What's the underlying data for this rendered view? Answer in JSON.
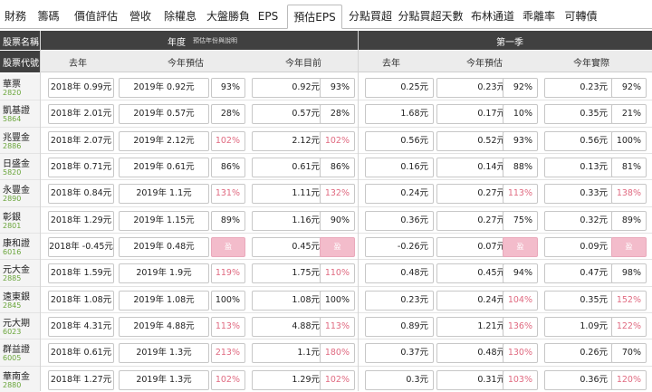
{
  "tabs": [
    {
      "label": "財務",
      "active": false
    },
    {
      "label": "籌碼",
      "active": false
    },
    {
      "label": "價值評估",
      "active": false
    },
    {
      "label": "營收",
      "active": false
    },
    {
      "label": "除權息",
      "active": false
    },
    {
      "label": "大盤勝負",
      "active": false
    },
    {
      "label": "EPS",
      "active": false
    },
    {
      "label": "預估EPS",
      "active": true
    },
    {
      "label": "分點買超",
      "active": false
    },
    {
      "label": "分點買超天數",
      "active": false
    },
    {
      "label": "布林通道",
      "active": false
    },
    {
      "label": "乖離率",
      "active": false
    },
    {
      "label": "可轉債",
      "active": false
    }
  ],
  "header": {
    "stock_name": "股票名稱",
    "stock_code": "股票代號",
    "annual_title": "年度",
    "annual_note": "預估年份與說明",
    "quarter_title": "第一季",
    "cols": {
      "last_year": "去年",
      "forecast": "今年預估",
      "current": "今年目前",
      "actual": "今年實際"
    }
  },
  "colors": {
    "header_dark": "#404040",
    "red_text": "#e06a80",
    "pink_badge": "#f3bccb",
    "code_green": "#6aa53b"
  },
  "rows": [
    {
      "name": "華票",
      "code": "2820",
      "y_last": "2018年 0.99元",
      "y_fc": "2019年 0.92元",
      "y_fc_pct": "93%",
      "y_cur": "0.92元",
      "y_cur_pct": "93%",
      "q_last": "0.25元",
      "q_fc": "0.23元",
      "q_fc_pct": "92%",
      "q_act": "0.23元",
      "q_act_pct": "92%"
    },
    {
      "name": "凱基證",
      "code": "5864",
      "y_last": "2018年 2.01元",
      "y_fc": "2019年 0.57元",
      "y_fc_pct": "28%",
      "y_cur": "0.57元",
      "y_cur_pct": "28%",
      "q_last": "1.68元",
      "q_fc": "0.17元",
      "q_fc_pct": "10%",
      "q_act": "0.35元",
      "q_act_pct": "21%"
    },
    {
      "name": "兆豐金",
      "code": "2886",
      "y_last": "2018年 2.07元",
      "y_fc": "2019年 2.12元",
      "y_fc_pct": "102%",
      "y_cur": "2.12元",
      "y_cur_pct": "102%",
      "q_last": "0.56元",
      "q_fc": "0.52元",
      "q_fc_pct": "93%",
      "q_act": "0.56元",
      "q_act_pct": "100%"
    },
    {
      "name": "日盛金",
      "code": "5820",
      "y_last": "2018年 0.71元",
      "y_fc": "2019年 0.61元",
      "y_fc_pct": "86%",
      "y_cur": "0.61元",
      "y_cur_pct": "86%",
      "q_last": "0.16元",
      "q_fc": "0.14元",
      "q_fc_pct": "88%",
      "q_act": "0.13元",
      "q_act_pct": "81%"
    },
    {
      "name": "永豐金",
      "code": "2890",
      "y_last": "2018年 0.84元",
      "y_fc": "2019年 1.1元",
      "y_fc_pct": "131%",
      "y_cur": "1.11元",
      "y_cur_pct": "132%",
      "q_last": "0.24元",
      "q_fc": "0.27元",
      "q_fc_pct": "113%",
      "q_act": "0.33元",
      "q_act_pct": "138%"
    },
    {
      "name": "彰銀",
      "code": "2801",
      "y_last": "2018年 1.29元",
      "y_fc": "2019年 1.15元",
      "y_fc_pct": "89%",
      "y_cur": "1.16元",
      "y_cur_pct": "90%",
      "q_last": "0.36元",
      "q_fc": "0.27元",
      "q_fc_pct": "75%",
      "q_act": "0.32元",
      "q_act_pct": "89%"
    },
    {
      "name": "康和證",
      "code": "6016",
      "y_last": "2018年 -0.45元",
      "y_fc": "2019年 0.48元",
      "y_fc_pct": "盈",
      "y_cur": "0.45元",
      "y_cur_pct": "盈",
      "q_last": "-0.26元",
      "q_fc": "0.07元",
      "q_fc_pct": "盈",
      "q_act": "0.09元",
      "q_act_pct": "盈"
    },
    {
      "name": "元大金",
      "code": "2885",
      "y_last": "2018年 1.59元",
      "y_fc": "2019年 1.9元",
      "y_fc_pct": "119%",
      "y_cur": "1.75元",
      "y_cur_pct": "110%",
      "q_last": "0.48元",
      "q_fc": "0.45元",
      "q_fc_pct": "94%",
      "q_act": "0.47元",
      "q_act_pct": "98%"
    },
    {
      "name": "遠東銀",
      "code": "2845",
      "y_last": "2018年 1.08元",
      "y_fc": "2019年 1.08元",
      "y_fc_pct": "100%",
      "y_cur": "1.08元",
      "y_cur_pct": "100%",
      "q_last": "0.23元",
      "q_fc": "0.24元",
      "q_fc_pct": "104%",
      "q_act": "0.35元",
      "q_act_pct": "152%"
    },
    {
      "name": "元大期",
      "code": "6023",
      "y_last": "2018年 4.31元",
      "y_fc": "2019年 4.88元",
      "y_fc_pct": "113%",
      "y_cur": "4.88元",
      "y_cur_pct": "113%",
      "q_last": "0.89元",
      "q_fc": "1.21元",
      "q_fc_pct": "136%",
      "q_act": "1.09元",
      "q_act_pct": "122%"
    },
    {
      "name": "群益證",
      "code": "6005",
      "y_last": "2018年 0.61元",
      "y_fc": "2019年 1.3元",
      "y_fc_pct": "213%",
      "y_cur": "1.1元",
      "y_cur_pct": "180%",
      "q_last": "0.37元",
      "q_fc": "0.48元",
      "q_fc_pct": "130%",
      "q_act": "0.26元",
      "q_act_pct": "70%"
    },
    {
      "name": "華南金",
      "code": "2880",
      "y_last": "2018年 1.27元",
      "y_fc": "2019年 1.3元",
      "y_fc_pct": "102%",
      "y_cur": "1.29元",
      "y_cur_pct": "102%",
      "q_last": "0.3元",
      "q_fc": "0.31元",
      "q_fc_pct": "103%",
      "q_act": "0.36元",
      "q_act_pct": "120%"
    }
  ]
}
